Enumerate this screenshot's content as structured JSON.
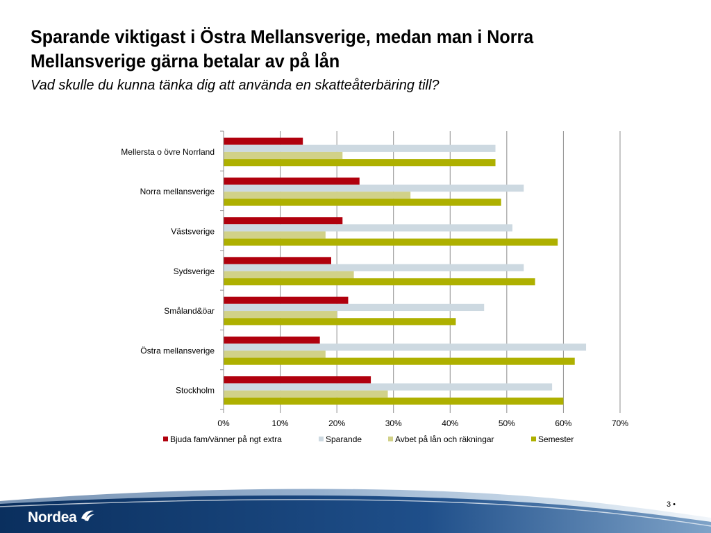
{
  "slide": {
    "title": "Sparande viktigast i Östra Mellansverige, medan man i Norra Mellansverige gärna betalar av på lån",
    "subtitle": "Vad skulle du kunna tänka dig att använda en skatteåterbäring till?",
    "page_number": "3 •",
    "logo_text": "Nordea"
  },
  "chart_data": {
    "type": "bar",
    "orientation": "horizontal",
    "title": "",
    "xlabel": "",
    "ylabel": "",
    "xlim": [
      0,
      70
    ],
    "x_ticks": [
      "0%",
      "10%",
      "20%",
      "30%",
      "40%",
      "50%",
      "60%",
      "70%"
    ],
    "grid": "vertical",
    "legend_position": "bottom",
    "categories": [
      "Mellersta o övre Norrland",
      "Norra mellansverige",
      "Västsverige",
      "Sydsverige",
      "Småland&öar",
      "Östra mellansverige",
      "Stockholm"
    ],
    "series": [
      {
        "name": "Bjuda fam/vänner på ngt extra",
        "color": "#b0000d",
        "values": [
          14,
          24,
          21,
          19,
          22,
          17,
          26
        ]
      },
      {
        "name": "Sparande",
        "color": "#cdd9e1",
        "values": [
          48,
          53,
          51,
          53,
          46,
          64,
          58
        ]
      },
      {
        "name": "Avbet på lån och räkningar",
        "color": "#d1d188",
        "values": [
          21,
          33,
          18,
          23,
          20,
          18,
          29
        ]
      },
      {
        "name": "Semester",
        "color": "#aeb000",
        "values": [
          48,
          49,
          59,
          55,
          41,
          62,
          60
        ]
      }
    ]
  }
}
